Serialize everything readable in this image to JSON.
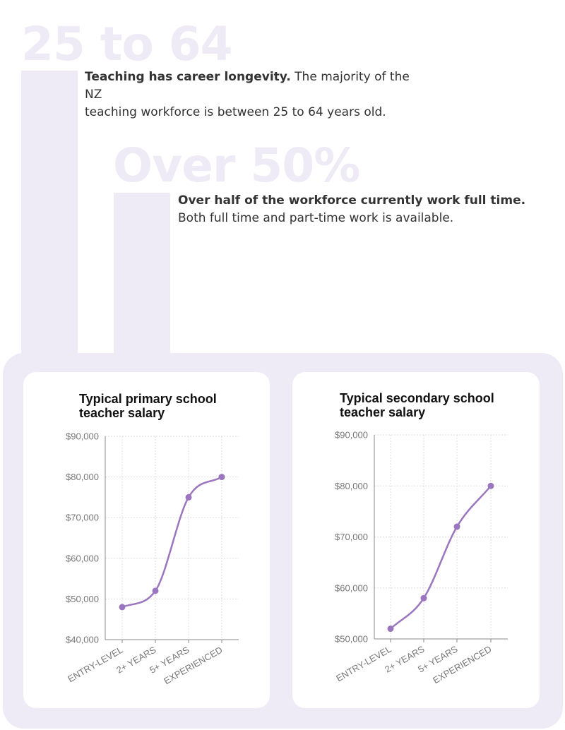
{
  "stats": [
    {
      "big": "25 to 64",
      "bold": "Teaching has career longevity.",
      "rest_line1": " The majority of the NZ",
      "rest_line2": "teaching workforce is between 25 to 64 years old."
    },
    {
      "big": "Over 50%",
      "bold": "Over half of the workforce currently work full time.",
      "rest_line2": "Both full time and part-time work is available."
    }
  ],
  "colors": {
    "accent": "#9b76bf",
    "panel": "#eeeaf6",
    "grid": "#dddddd",
    "axis": "#888888"
  },
  "chart_data": [
    {
      "type": "line",
      "title_line1": "Typical primary school",
      "title_line2": "teacher salary",
      "categories": [
        "ENTRY-LEVEL",
        "2+ YEARS",
        "5+ YEARS",
        "EXPERIENCED"
      ],
      "values": [
        48000,
        52000,
        75000,
        80000
      ],
      "ylim": [
        40000,
        90000
      ],
      "yticks": [
        40000,
        50000,
        60000,
        70000,
        80000,
        90000
      ],
      "ytick_labels": [
        "$40,000",
        "$50,000",
        "$60,000",
        "$70,000",
        "$80,000",
        "$90,000"
      ],
      "grid": true
    },
    {
      "type": "line",
      "title_line1": "Typical secondary school",
      "title_line2": "teacher salary",
      "categories": [
        "ENTRY-LEVEL",
        "2+ YEARS",
        "5+ YEARS",
        "EXPERIENCED"
      ],
      "values": [
        52000,
        58000,
        72000,
        80000
      ],
      "ylim": [
        50000,
        90000
      ],
      "yticks": [
        50000,
        60000,
        70000,
        80000,
        90000
      ],
      "ytick_labels": [
        "$50,000",
        "$60,000",
        "$70,000",
        "$80,000",
        "$90,000"
      ],
      "grid": true
    }
  ]
}
